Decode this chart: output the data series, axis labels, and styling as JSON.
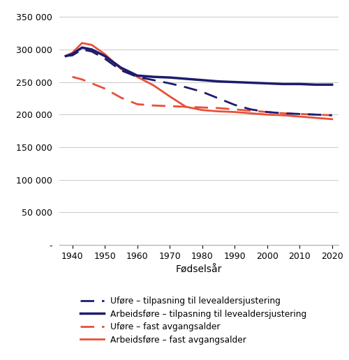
{
  "x_years": [
    1938,
    1940,
    1943,
    1946,
    1950,
    1955,
    1960,
    1965,
    1970,
    1975,
    1980,
    1985,
    1990,
    1995,
    2000,
    2005,
    2010,
    2015,
    2020
  ],
  "arbeidsf_tilp": [
    290000,
    293000,
    303000,
    300000,
    290000,
    272000,
    260000,
    258000,
    257000,
    255000,
    253000,
    251000,
    250000,
    249000,
    248000,
    247000,
    247000,
    246000,
    246000
  ],
  "uf_tilp": [
    290000,
    291000,
    300000,
    297000,
    286000,
    268000,
    258000,
    253000,
    248000,
    242000,
    235000,
    225000,
    215000,
    208000,
    204000,
    202000,
    201000,
    200000,
    199000
  ],
  "arbeidsf_fast": [
    290000,
    295000,
    310000,
    307000,
    293000,
    270000,
    258000,
    245000,
    228000,
    212000,
    207000,
    205000,
    204000,
    202000,
    200000,
    199000,
    197000,
    195000,
    193000
  ],
  "uf_fast_start": 1940,
  "uf_fast": [
    258000,
    254000,
    248000,
    240000,
    226000,
    216000,
    214000,
    213000,
    212000,
    211000,
    210000,
    208000,
    206000,
    204000,
    202000,
    201000,
    200000,
    199000
  ],
  "ylabel_ticks": [
    0,
    50000,
    100000,
    150000,
    200000,
    250000,
    300000,
    350000
  ],
  "xticks": [
    1940,
    1950,
    1960,
    1970,
    1980,
    1990,
    2000,
    2010,
    2020
  ],
  "xlim": [
    1936,
    2022
  ],
  "ylim": [
    0,
    365000
  ],
  "xlabel": "Fødselsår",
  "legend": [
    "Uføre – tilpasning til levealdersjustering",
    "Arbeidsføre – tilpasning til levealdersjustering",
    "Uføre – fast avgangsalder",
    "Arbeidsføre – fast avgangsalder"
  ],
  "color_dark": "#1c1c6e",
  "color_red": "#e8503a",
  "background_color": "#ffffff",
  "lw": 2.0
}
